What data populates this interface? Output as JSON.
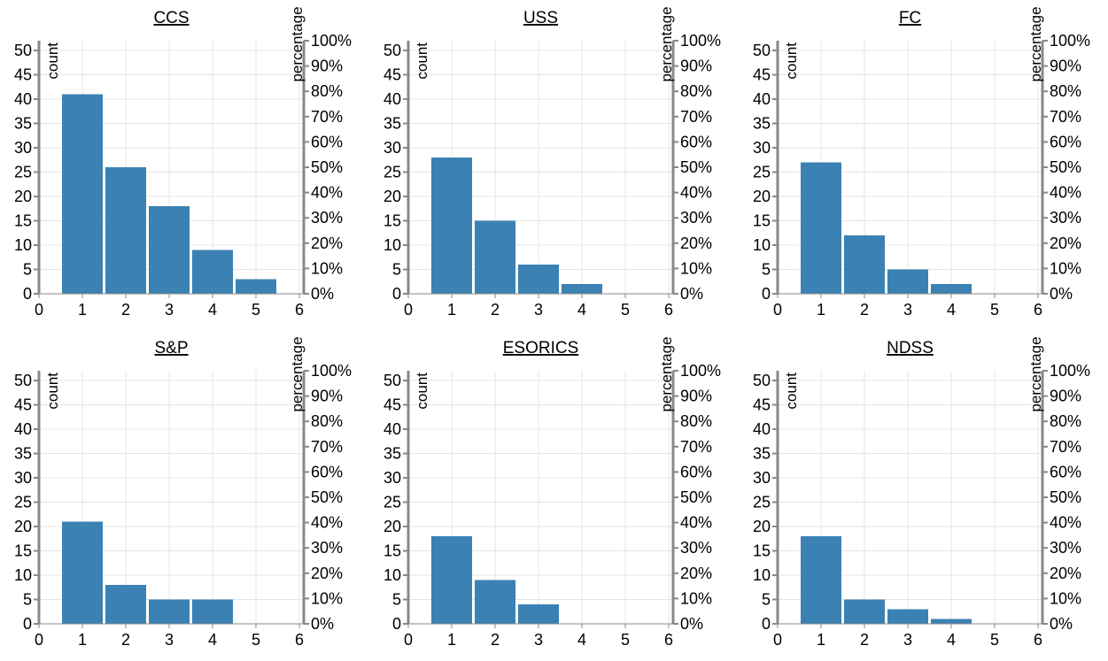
{
  "chart_data": [
    {
      "type": "bar",
      "title": "CCS",
      "categories": [
        "1",
        "2",
        "3",
        "4",
        "5",
        "6"
      ],
      "values": [
        41,
        26,
        18,
        9,
        3,
        0
      ],
      "x_ticks": [
        "0",
        "1",
        "2",
        "3",
        "4",
        "5",
        "6"
      ],
      "ylabel": "count",
      "ylabel_right": "percentage",
      "ylim": [
        0,
        52
      ],
      "y_ticks": [
        "0",
        "5",
        "10",
        "15",
        "20",
        "25",
        "30",
        "35",
        "40",
        "45",
        "50"
      ],
      "y2_ticks": [
        "0%",
        "10%",
        "20%",
        "30%",
        "40%",
        "50%",
        "60%",
        "70%",
        "80%",
        "90%",
        "100%"
      ],
      "grid": true,
      "bar_color": "#3b81b4"
    },
    {
      "type": "bar",
      "title": "USS",
      "categories": [
        "1",
        "2",
        "3",
        "4",
        "5",
        "6"
      ],
      "values": [
        28,
        15,
        6,
        2,
        0,
        0
      ],
      "x_ticks": [
        "0",
        "1",
        "2",
        "3",
        "4",
        "5",
        "6"
      ],
      "ylabel": "count",
      "ylabel_right": "percentage",
      "ylim": [
        0,
        52
      ],
      "y_ticks": [
        "0",
        "5",
        "10",
        "15",
        "20",
        "25",
        "30",
        "35",
        "40",
        "45",
        "50"
      ],
      "y2_ticks": [
        "0%",
        "10%",
        "20%",
        "30%",
        "40%",
        "50%",
        "60%",
        "70%",
        "80%",
        "90%",
        "100%"
      ],
      "grid": true,
      "bar_color": "#3b81b4"
    },
    {
      "type": "bar",
      "title": "FC",
      "categories": [
        "1",
        "2",
        "3",
        "4",
        "5",
        "6"
      ],
      "values": [
        27,
        12,
        5,
        2,
        0,
        0
      ],
      "x_ticks": [
        "0",
        "1",
        "2",
        "3",
        "4",
        "5",
        "6"
      ],
      "ylabel": "count",
      "ylabel_right": "percentage",
      "ylim": [
        0,
        52
      ],
      "y_ticks": [
        "0",
        "5",
        "10",
        "15",
        "20",
        "25",
        "30",
        "35",
        "40",
        "45",
        "50"
      ],
      "y2_ticks": [
        "0%",
        "10%",
        "20%",
        "30%",
        "40%",
        "50%",
        "60%",
        "70%",
        "80%",
        "90%",
        "100%"
      ],
      "grid": true,
      "bar_color": "#3b81b4"
    },
    {
      "type": "bar",
      "title": "S&P",
      "categories": [
        "1",
        "2",
        "3",
        "4",
        "5",
        "6"
      ],
      "values": [
        21,
        8,
        5,
        5,
        0,
        0
      ],
      "x_ticks": [
        "0",
        "1",
        "2",
        "3",
        "4",
        "5",
        "6"
      ],
      "ylabel": "count",
      "ylabel_right": "percentage",
      "ylim": [
        0,
        52
      ],
      "y_ticks": [
        "0",
        "5",
        "10",
        "15",
        "20",
        "25",
        "30",
        "35",
        "40",
        "45",
        "50"
      ],
      "y2_ticks": [
        "0%",
        "10%",
        "20%",
        "30%",
        "40%",
        "50%",
        "60%",
        "70%",
        "80%",
        "90%",
        "100%"
      ],
      "grid": true,
      "bar_color": "#3b81b4"
    },
    {
      "type": "bar",
      "title": "ESORICS",
      "categories": [
        "1",
        "2",
        "3",
        "4",
        "5",
        "6"
      ],
      "values": [
        18,
        9,
        4,
        0,
        0,
        0
      ],
      "x_ticks": [
        "0",
        "1",
        "2",
        "3",
        "4",
        "5",
        "6"
      ],
      "ylabel": "count",
      "ylabel_right": "percentage",
      "ylim": [
        0,
        52
      ],
      "y_ticks": [
        "0",
        "5",
        "10",
        "15",
        "20",
        "25",
        "30",
        "35",
        "40",
        "45",
        "50"
      ],
      "y2_ticks": [
        "0%",
        "10%",
        "20%",
        "30%",
        "40%",
        "50%",
        "60%",
        "70%",
        "80%",
        "90%",
        "100%"
      ],
      "grid": true,
      "bar_color": "#3b81b4"
    },
    {
      "type": "bar",
      "title": "NDSS",
      "categories": [
        "1",
        "2",
        "3",
        "4",
        "5",
        "6"
      ],
      "values": [
        18,
        5,
        3,
        1,
        0,
        0
      ],
      "x_ticks": [
        "0",
        "1",
        "2",
        "3",
        "4",
        "5",
        "6"
      ],
      "ylabel": "count",
      "ylabel_right": "percentage",
      "ylim": [
        0,
        52
      ],
      "y_ticks": [
        "0",
        "5",
        "10",
        "15",
        "20",
        "25",
        "30",
        "35",
        "40",
        "45",
        "50"
      ],
      "y2_ticks": [
        "0%",
        "10%",
        "20%",
        "30%",
        "40%",
        "50%",
        "60%",
        "70%",
        "80%",
        "90%",
        "100%"
      ],
      "grid": true,
      "bar_color": "#3b81b4"
    }
  ]
}
